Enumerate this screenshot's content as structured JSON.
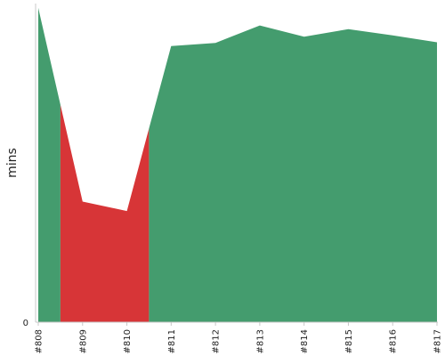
{
  "chart_data": {
    "type": "area",
    "ylabel": "mins",
    "xlabel": "",
    "title": "",
    "categories": [
      "#808",
      "#809",
      "#810",
      "#811",
      "#812",
      "#813",
      "#814",
      "#815",
      "#816",
      "#817"
    ],
    "values": [
      50.3,
      19.3,
      17.8,
      44.2,
      44.7,
      47.5,
      45.7,
      46.9,
      45.9,
      44.8
    ],
    "status": [
      "success",
      "failure",
      "failure",
      "success",
      "success",
      "success",
      "success",
      "success",
      "success",
      "success"
    ],
    "status_colors": {
      "success": "#449c6e",
      "failure": "#d73537"
    },
    "ylim": [
      0,
      51
    ],
    "yticks": [
      0
    ],
    "legend": "none",
    "grid": false
  }
}
